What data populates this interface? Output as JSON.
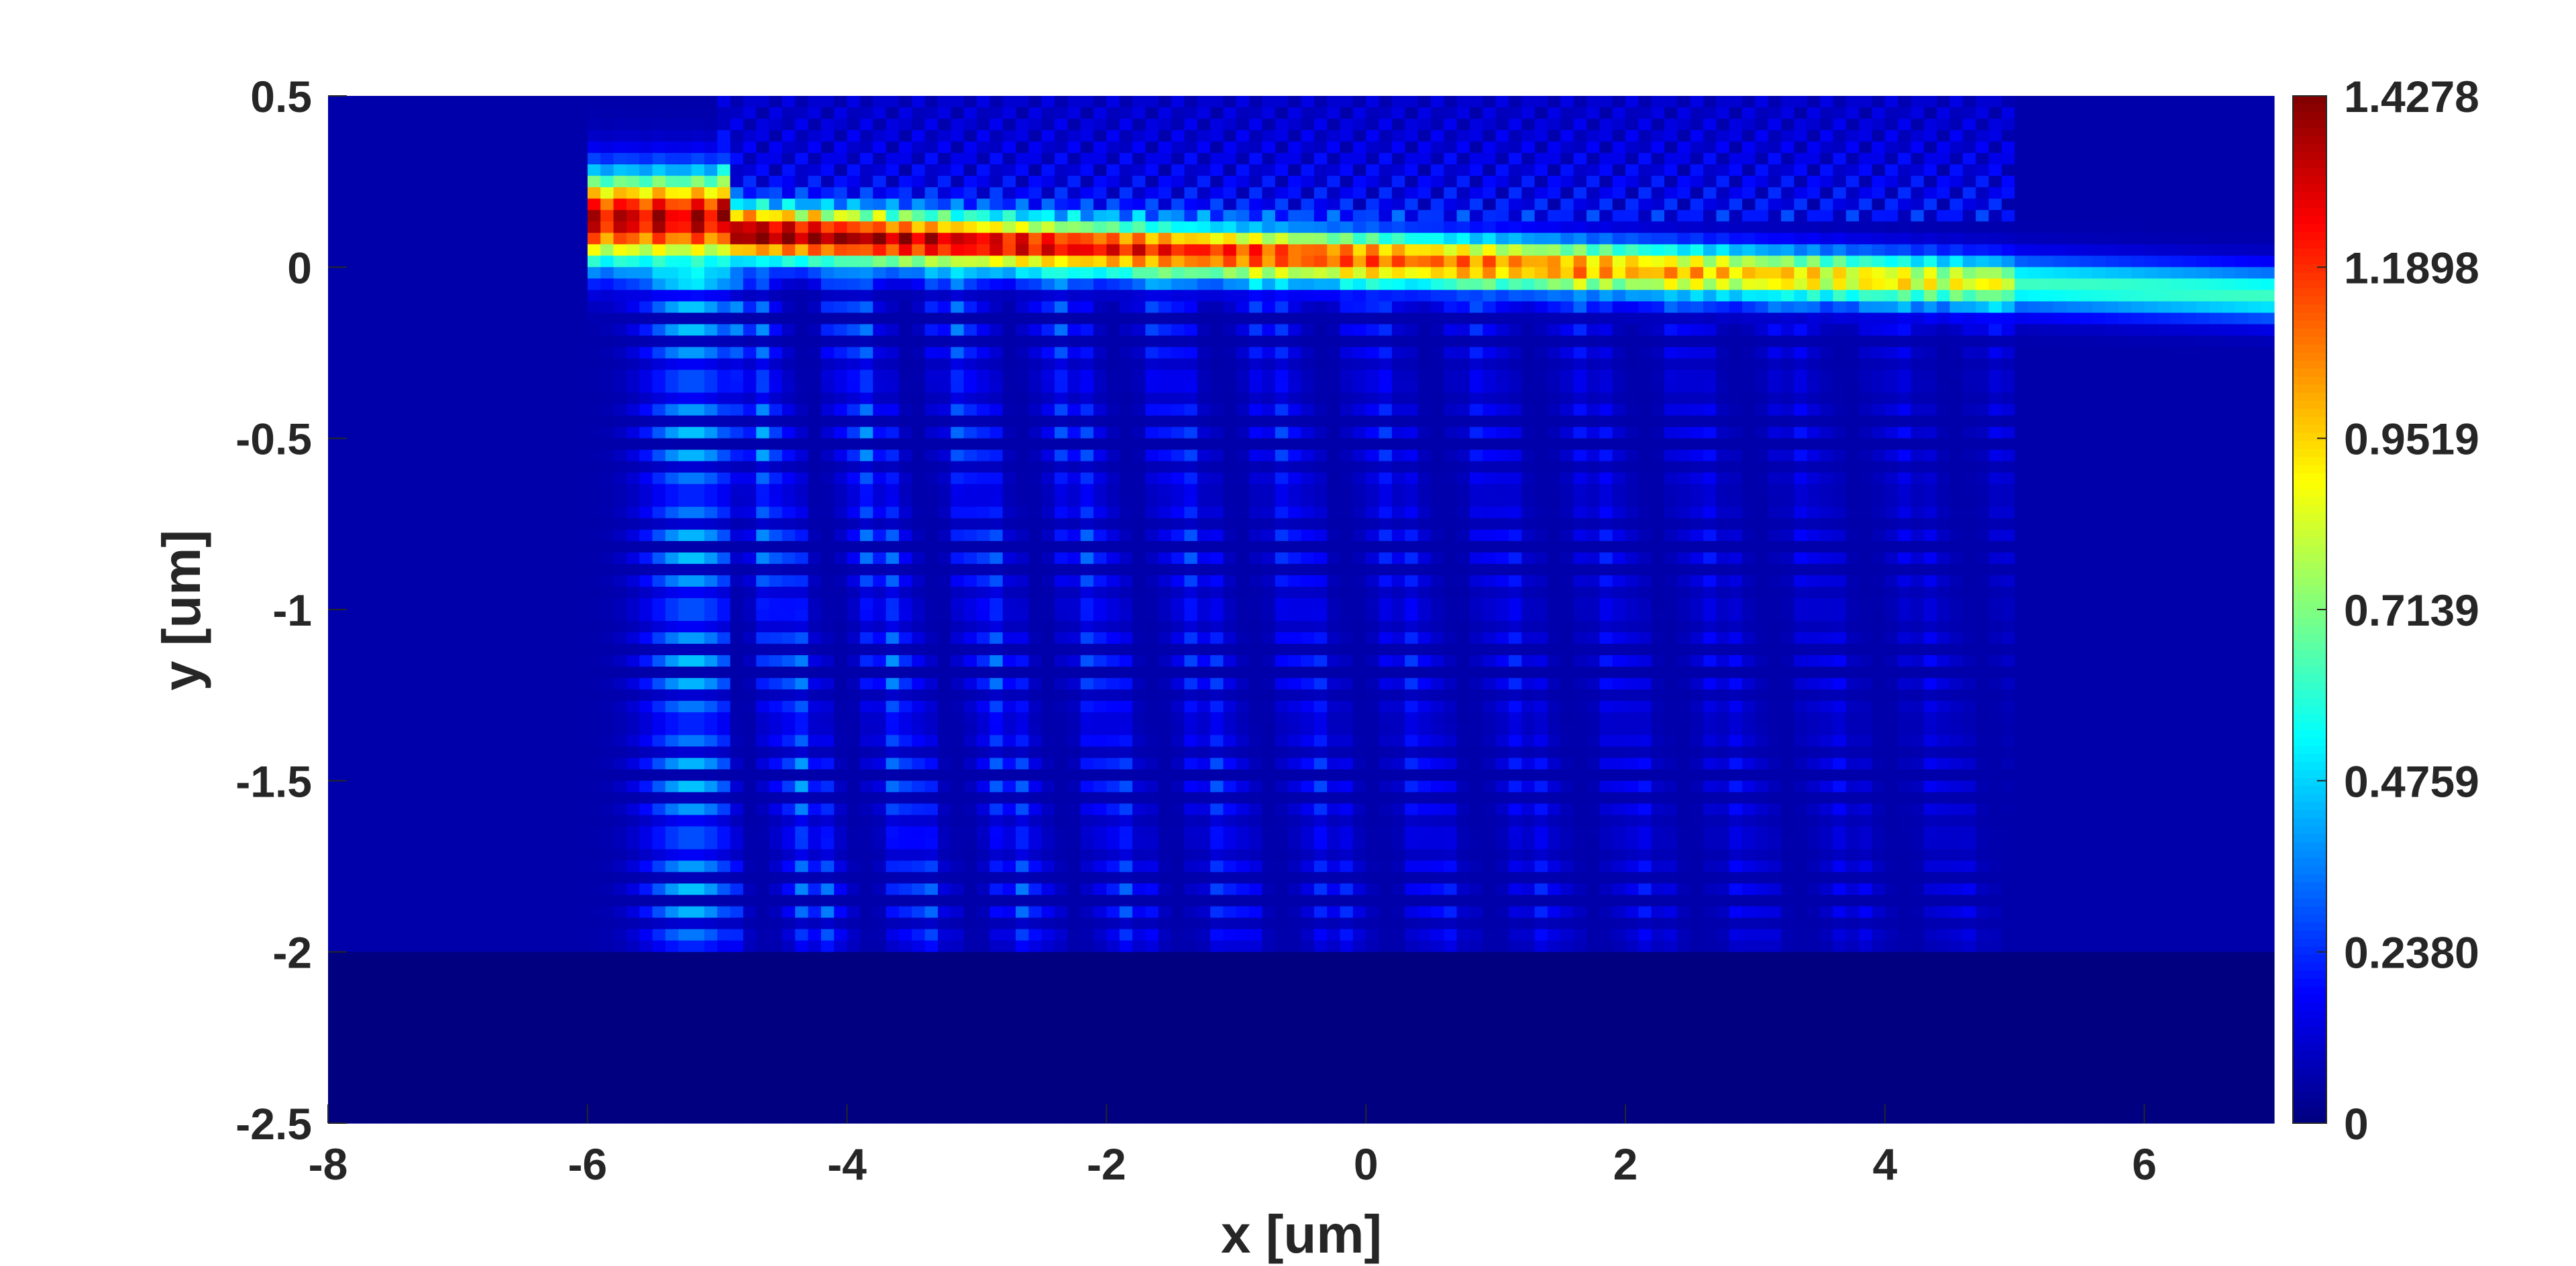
{
  "chart_data": {
    "type": "heatmap",
    "title": "",
    "xlabel": "x [um]",
    "ylabel": "y [um]",
    "xlim": [
      -8,
      7
    ],
    "ylim": [
      -2.5,
      0.5
    ],
    "x_ticks": [
      -8,
      -6,
      -4,
      -2,
      0,
      2,
      4,
      6
    ],
    "x_tick_labels": [
      "-8",
      "-6",
      "-4",
      "-2",
      "0",
      "2",
      "4",
      "6"
    ],
    "y_ticks": [
      0.5,
      0,
      -0.5,
      -1,
      -1.5,
      -2,
      -2.5
    ],
    "y_tick_labels": [
      "0.5",
      "0",
      "-0.5",
      "-1",
      "-1.5",
      "-2",
      "-2.5"
    ],
    "colormap": "jet",
    "color_range": [
      0,
      1.4278
    ],
    "colorbar_ticks": [
      1.4278,
      1.1898,
      0.9519,
      0.7139,
      0.4759,
      0.238,
      0
    ],
    "colorbar_tick_labels": [
      "1.4278",
      "1.1898",
      "0.9519",
      "0.7139",
      "0.4759",
      "0.2380",
      "0"
    ],
    "features": [
      {
        "region": "waveguide core, tapered input section",
        "x_range": [
          -6,
          -4.9
        ],
        "y_range": [
          0,
          0.3
        ],
        "value_approx": 1.3
      },
      {
        "region": "waveguide core, decaying section",
        "x_range": [
          -4.9,
          5
        ],
        "y_range": [
          0,
          0.2
        ],
        "value_start": 1.4,
        "value_end": 0.8
      },
      {
        "region": "waveguide core, output section",
        "x_range": [
          5,
          7
        ],
        "y_range": [
          0.02,
          0.18
        ],
        "value_approx": 0.55
      },
      {
        "region": "radiated standing-wave pattern",
        "x_range": [
          -6,
          5
        ],
        "y_range": [
          -2,
          0
        ],
        "value_max_approx": 0.45
      },
      {
        "region": "substrate",
        "x_range": [
          -8,
          7
        ],
        "y_range": [
          -2.5,
          -2
        ],
        "value_approx": 0
      }
    ],
    "grid": false,
    "legend": "none"
  }
}
